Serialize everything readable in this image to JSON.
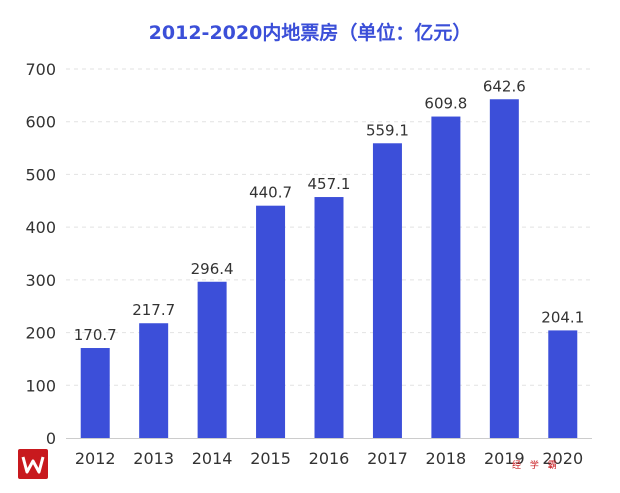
{
  "title": "2012-2020内地票房（单位：亿元）",
  "watermark": "经 学 霸",
  "colors": {
    "bar": "#3c4fd9",
    "title": "#3b4fd8",
    "logo": "#c8191e",
    "grid": "#e2e2e2"
  },
  "logo_icon": "w-logo-icon",
  "chart_data": {
    "type": "bar",
    "title": "2012-2020内地票房（单位：亿元）",
    "xlabel": "",
    "ylabel": "",
    "categories": [
      "2012",
      "2013",
      "2014",
      "2015",
      "2016",
      "2017",
      "2018",
      "2019",
      "2020"
    ],
    "values": [
      170.7,
      217.7,
      296.4,
      440.7,
      457.1,
      559.1,
      609.8,
      642.6,
      204.1
    ],
    "data_labels": [
      "170.7",
      "217.7",
      "296.4",
      "440.7",
      "457.1",
      "559.1",
      "609.8",
      "642.6",
      "204.1"
    ],
    "ylim": [
      0,
      700
    ],
    "yticks": [
      "0",
      "100",
      "200",
      "300",
      "400",
      "500",
      "600",
      "700"
    ],
    "grid": true,
    "legend": "none"
  }
}
